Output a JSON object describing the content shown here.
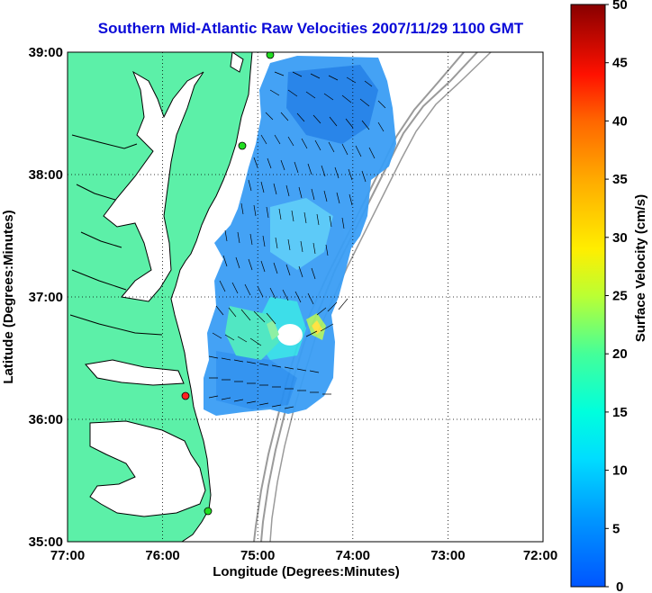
{
  "title": "Southern Mid-Atlantic Raw Velocities 2007/11/29 1100 GMT",
  "x_axis": {
    "label": "Longitude (Degrees:Minutes)",
    "ticks": [
      "77:00",
      "76:00",
      "75:00",
      "74:00",
      "73:00",
      "72:00"
    ]
  },
  "y_axis": {
    "label": "Latitude (Degrees:Minutes)",
    "ticks": [
      "39:00",
      "38:00",
      "37:00",
      "36:00",
      "35:00"
    ]
  },
  "colorbar": {
    "label": "Surface Velocity (cm/s)",
    "ticks": [
      "50",
      "45",
      "40",
      "35",
      "30",
      "25",
      "20",
      "15",
      "10",
      "5",
      "0"
    ],
    "min": 0,
    "max": 50
  },
  "colors": {
    "land": "#5cf0a8",
    "title": "#0a0ad8",
    "coast": "#000000",
    "bathymetry": "#9a9a9a"
  },
  "stations": [
    {
      "name": "north-station",
      "color": "#22dd22"
    },
    {
      "name": "delmarva-station",
      "color": "#22dd22"
    },
    {
      "name": "virginia-station",
      "color": "#ff2222"
    },
    {
      "name": "carolina-station",
      "color": "#22dd22"
    }
  ],
  "chart_data": {
    "type": "heatmap",
    "title": "Southern Mid-Atlantic Raw Velocities 2007/11/29 1100 GMT",
    "xlabel": "Longitude (Degrees:Minutes)",
    "ylabel": "Latitude (Degrees:Minutes)",
    "xlim": [
      "77:00",
      "72:00"
    ],
    "ylim": [
      "35:00",
      "39:00"
    ],
    "colorbar_label": "Surface Velocity (cm/s)",
    "colorbar_range": [
      0,
      50
    ],
    "colormap": "jet",
    "grid": true
  }
}
